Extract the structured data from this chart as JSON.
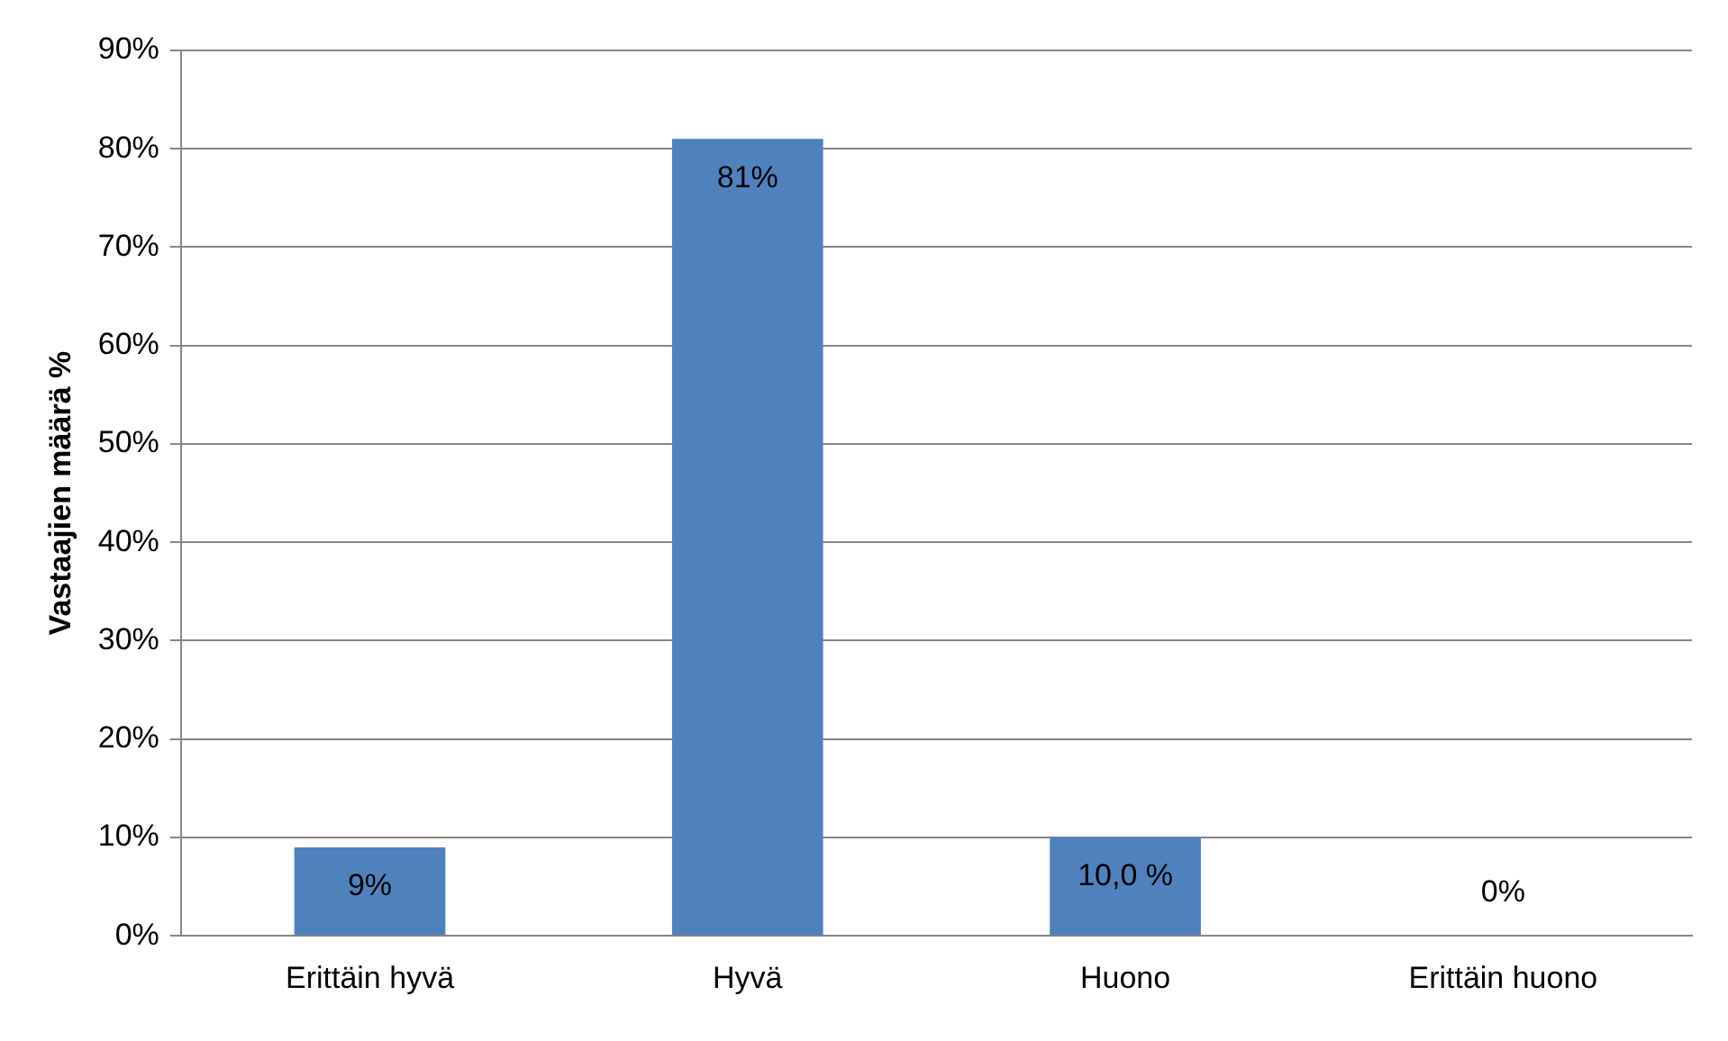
{
  "chart_data": {
    "type": "bar",
    "ylabel": "Vastaajien määrä %",
    "categories": [
      "Erittäin hyvä",
      "Hyvä",
      "Huono",
      "Erittäin huono"
    ],
    "values": [
      9,
      81,
      10,
      0
    ],
    "color": "#4f81bd",
    "value_labels": [
      "9%",
      "81%",
      "10,0 %",
      "0%"
    ],
    "ylim": [
      0,
      90
    ],
    "yticks": [
      {
        "value": 0,
        "label": "0%"
      },
      {
        "value": 10,
        "label": "10%"
      },
      {
        "value": 20,
        "label": "20%"
      },
      {
        "value": 30,
        "label": "30%"
      },
      {
        "value": 40,
        "label": "40%"
      },
      {
        "value": 50,
        "label": "50%"
      },
      {
        "value": 60,
        "label": "60%"
      },
      {
        "value": 70,
        "label": "70%"
      },
      {
        "value": 80,
        "label": "80%"
      },
      {
        "value": 90,
        "label": "90%"
      }
    ],
    "grid": "y",
    "legend": false
  }
}
